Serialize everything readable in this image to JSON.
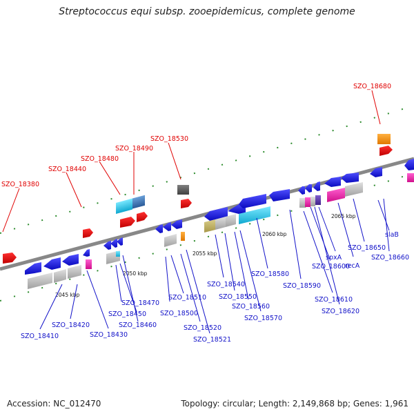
{
  "title": "Streptococcus equi subsp. zooepidemicus, complete genome",
  "footer": {
    "accession": "Accession: NC_012470",
    "summary": "Topology: circular; Length: 2,149,868 bp; Genes: 1,961"
  },
  "scale_labels": [
    "2045 kbp",
    "2050 kbp",
    "2055 kbp",
    "2060 kbp",
    "2065 kbp"
  ],
  "top_genes": [
    "SZO_18380",
    "SZO_18440",
    "SZO_18480",
    "SZO_18490",
    "SZO_18530",
    "SZO_18680"
  ],
  "bottom_genes": [
    "SZO_18410",
    "SZO_18420",
    "SZO_18430",
    "SZO_18450",
    "SZO_18460",
    "SZO_18470",
    "SZO_18500",
    "SZO_18510",
    "SZO_18520",
    "SZO_18521",
    "SZO_18540",
    "SZO_18550",
    "SZO_18560",
    "SZO_18570",
    "SZO_18580",
    "SZO_18590",
    "SZO_18600",
    "SZO_18610",
    "SZO_18620",
    "spxA",
    "recA",
    "SZO_18650",
    "slaB",
    "SZO_18660"
  ],
  "colors": {
    "backbone": "#888888",
    "top_label": "#e00000",
    "bottom_label": "#1010c8",
    "strand_plus": "#e00000",
    "strand_minus": "#1818e0",
    "tick": "#2a8a2a"
  }
}
